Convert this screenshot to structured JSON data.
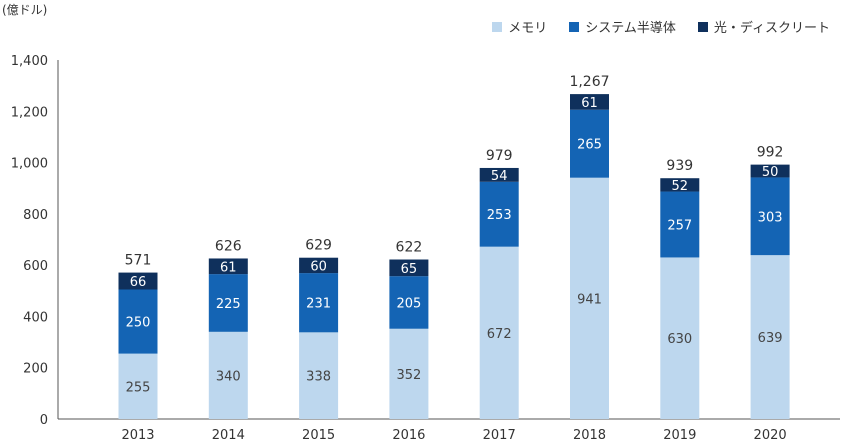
{
  "unit_label": "(億ドル)",
  "chart_data": {
    "type": "bar",
    "stacked": true,
    "categories": [
      "2013",
      "2014",
      "2015",
      "2016",
      "2017",
      "2018",
      "2019",
      "2020"
    ],
    "series": [
      {
        "name": "メモリ",
        "values": [
          255,
          340,
          338,
          352,
          672,
          941,
          630,
          639
        ],
        "color": "#bdd7ee"
      },
      {
        "name": "システム半導体",
        "values": [
          250,
          225,
          231,
          205,
          253,
          265,
          257,
          303
        ],
        "color": "#1464b4"
      },
      {
        "name": "光・ディスクリート",
        "values": [
          66,
          61,
          60,
          65,
          54,
          61,
          52,
          50
        ],
        "color": "#0f305c"
      }
    ],
    "totals": [
      "571",
      "626",
      "629",
      "622",
      "979",
      "1,267",
      "939",
      "992"
    ],
    "yticks": [
      "0",
      "200",
      "400",
      "600",
      "800",
      "1,000",
      "1,200",
      "1,400"
    ],
    "ylim": [
      0,
      1400
    ],
    "grid": false,
    "legend_position": "top-right"
  }
}
